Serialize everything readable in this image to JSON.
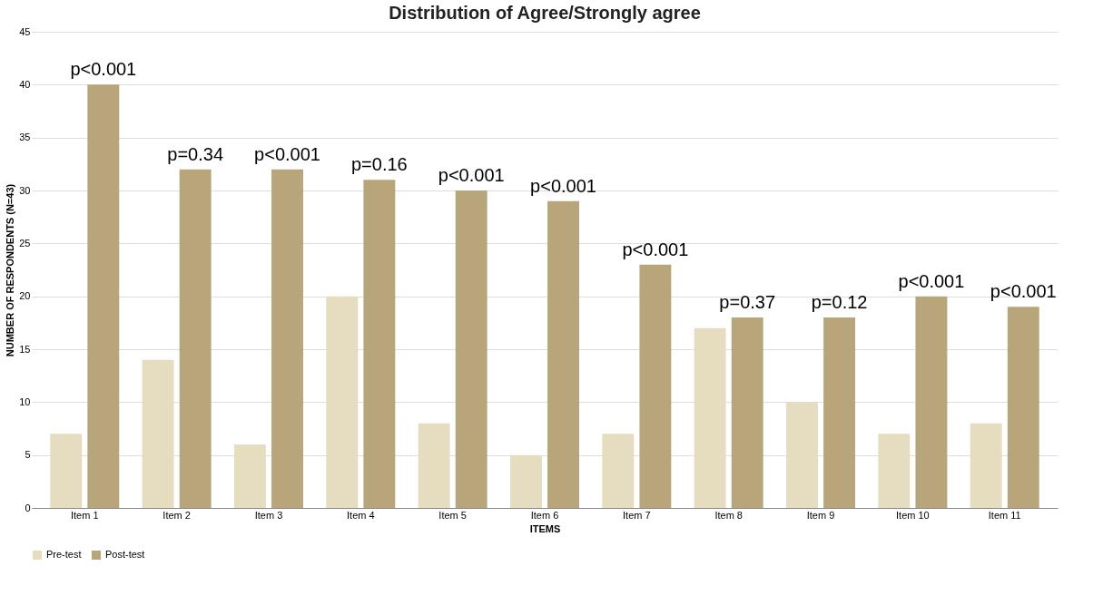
{
  "chart_data": {
    "type": "bar",
    "title": "Distribution of Agree/Strongly agree",
    "xlabel": "ITEMS",
    "ylabel": "NUMBER OF RESPONDENTS (N=43)",
    "categories": [
      "Item 1",
      "Item 2",
      "Item 3",
      "Item 4",
      "Item 5",
      "Item 6",
      "Item 7",
      "Item 8",
      "Item 9",
      "Item 10",
      "Item 11"
    ],
    "series": [
      {
        "name": "Pre-test",
        "color": "#e6dcc0",
        "values": [
          7,
          14,
          6,
          20,
          8,
          5,
          7,
          17,
          10,
          7,
          8
        ]
      },
      {
        "name": "Post-test",
        "color": "#b8a67a",
        "values": [
          40,
          32,
          32,
          31,
          30,
          29,
          23,
          18,
          18,
          20,
          19
        ]
      }
    ],
    "ylim": [
      0,
      45
    ],
    "yticks": [
      0,
      5,
      10,
      15,
      20,
      25,
      30,
      35,
      40,
      45
    ],
    "grid": "y",
    "legend": "bottom",
    "annotations": [
      {
        "text": "p<0.001",
        "x": "Item 1",
        "y": 40
      },
      {
        "text": "p=0.34",
        "x": "Item 2",
        "y": 32
      },
      {
        "text": "p<0.001",
        "x": "Item 3",
        "y": 32
      },
      {
        "text": "p=0.16",
        "x": "Item 4",
        "y": 31
      },
      {
        "text": "p<0.001",
        "x": "Item 5",
        "y": 30
      },
      {
        "text": "p<0.001",
        "x": "Item 6",
        "y": 29
      },
      {
        "text": "p<0.001",
        "x": "Item 7",
        "y": 23
      },
      {
        "text": "p=0.37",
        "x": "Item 8",
        "y": 18
      },
      {
        "text": "p=0.12",
        "x": "Item 9",
        "y": 18
      },
      {
        "text": "p<0.001",
        "x": "Item 10",
        "y": 20
      },
      {
        "text": "p<0.001",
        "x": "Item 11",
        "y": 19
      }
    ]
  }
}
